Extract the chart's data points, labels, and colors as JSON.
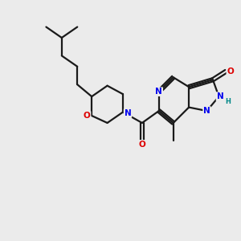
{
  "background_color": "#ebebeb",
  "bond_color": "#1a1a1a",
  "atom_N": "#0000ee",
  "atom_O": "#dd0000",
  "atom_NH": "#008888",
  "line_width": 1.6,
  "figsize": [
    3.0,
    3.0
  ],
  "dpi": 100,
  "xlim": [
    0,
    10
  ],
  "ylim": [
    0,
    10
  ]
}
